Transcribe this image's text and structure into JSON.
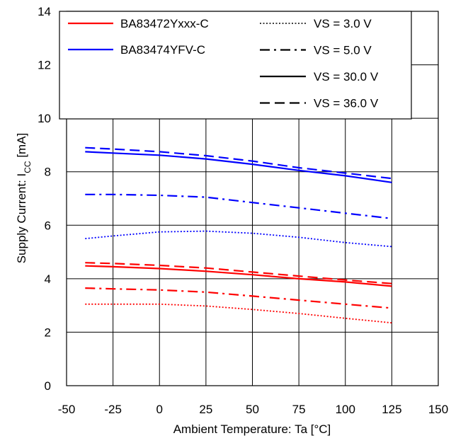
{
  "chart_data": {
    "type": "line",
    "title": "",
    "xlabel": "Ambient Temperature: Ta [°C]",
    "ylabel_main": "Supply Current: I",
    "ylabel_sub": "CC",
    "ylabel_unit": " [mA]",
    "xlim": [
      -50,
      150
    ],
    "ylim": [
      0,
      14
    ],
    "x_ticks": [
      "-50",
      "-25",
      "0",
      "25",
      "50",
      "75",
      "100",
      "125",
      "150"
    ],
    "y_ticks": [
      "0",
      "2",
      "4",
      "6",
      "8",
      "10",
      "12",
      "14"
    ],
    "grid": true,
    "x": [
      -40,
      -25,
      0,
      25,
      50,
      75,
      100,
      125
    ],
    "device_legend": [
      {
        "label": "BA83472Yxxx-C",
        "color": "#ff0000"
      },
      {
        "label": "BA83474YFV-C",
        "color": "#0000ff"
      }
    ],
    "voltage_legend": [
      {
        "label": "VS = 3.0 V",
        "dash": "dot"
      },
      {
        "label": "VS = 5.0 V",
        "dash": "dashdot"
      },
      {
        "label": "VS = 30.0 V",
        "dash": "solid"
      },
      {
        "label": "VS = 36.0 V",
        "dash": "dash"
      }
    ],
    "series": [
      {
        "device": "BA83474YFV-C",
        "vs": "VS = 36.0 V",
        "color": "#0000ff",
        "dash": "dash",
        "values": [
          8.9,
          8.85,
          8.75,
          8.6,
          8.4,
          8.15,
          7.95,
          7.75
        ]
      },
      {
        "device": "BA83474YFV-C",
        "vs": "VS = 30.0 V",
        "color": "#0000ff",
        "dash": "solid",
        "values": [
          8.75,
          8.7,
          8.62,
          8.48,
          8.28,
          8.05,
          7.85,
          7.6
        ]
      },
      {
        "device": "BA83474YFV-C",
        "vs": "VS = 5.0 V",
        "color": "#0000ff",
        "dash": "dashdot",
        "values": [
          7.15,
          7.15,
          7.12,
          7.05,
          6.85,
          6.65,
          6.45,
          6.25
        ]
      },
      {
        "device": "BA83474YFV-C",
        "vs": "VS = 3.0 V",
        "color": "#0000ff",
        "dash": "dot",
        "values": [
          5.5,
          5.6,
          5.75,
          5.78,
          5.7,
          5.55,
          5.35,
          5.2
        ]
      },
      {
        "device": "BA83472Yxxx-C",
        "vs": "VS = 36.0 V",
        "color": "#ff0000",
        "dash": "dash",
        "values": [
          4.6,
          4.57,
          4.5,
          4.4,
          4.25,
          4.1,
          3.95,
          3.82
        ]
      },
      {
        "device": "BA83472Yxxx-C",
        "vs": "VS = 30.0 V",
        "color": "#ff0000",
        "dash": "solid",
        "values": [
          4.48,
          4.45,
          4.38,
          4.28,
          4.15,
          4.0,
          3.88,
          3.72
        ]
      },
      {
        "device": "BA83472Yxxx-C",
        "vs": "VS = 5.0 V",
        "color": "#ff0000",
        "dash": "dashdot",
        "values": [
          3.65,
          3.62,
          3.58,
          3.5,
          3.35,
          3.2,
          3.05,
          2.9
        ]
      },
      {
        "device": "BA83472Yxxx-C",
        "vs": "VS = 3.0 V",
        "color": "#ff0000",
        "dash": "dot",
        "values": [
          3.05,
          3.05,
          3.05,
          2.98,
          2.85,
          2.7,
          2.52,
          2.35
        ]
      }
    ]
  }
}
